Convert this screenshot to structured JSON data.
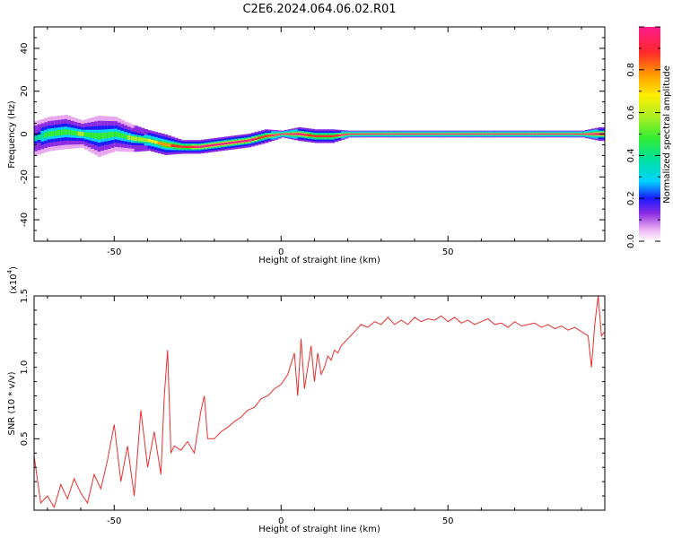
{
  "title": "C2E6.2024.064.06.02.R01",
  "chart_data": [
    {
      "type": "heatmap",
      "xlabel": "Height of straight line (km)",
      "ylabel": "Frequency (Hz)",
      "xlim": [
        -74,
        97
      ],
      "ylim": [
        -50,
        50
      ],
      "x_ticks": [
        "-50",
        "0",
        "50"
      ],
      "y_ticks": [
        "40",
        "20",
        "0",
        "-20",
        "-40"
      ],
      "ridge": {
        "x": [
          -74,
          -70,
          -65,
          -60,
          -55,
          -50,
          -45,
          -40,
          -35,
          -30,
          -25,
          -20,
          -15,
          -10,
          -5,
          0,
          5,
          10,
          15,
          20,
          25,
          30,
          40,
          50,
          60,
          70,
          80,
          90,
          95
        ],
        "freq": [
          -2,
          0,
          1,
          0,
          -1,
          0,
          -2,
          -3,
          -5,
          -6,
          -6,
          -5,
          -4,
          -3,
          -1,
          0,
          0,
          -1,
          -1,
          0,
          0,
          0,
          0,
          0,
          0,
          0,
          0,
          0,
          0
        ],
        "spread": [
          5,
          5,
          5,
          4,
          6,
          5,
          4,
          3,
          3,
          2,
          2,
          2,
          2,
          2,
          2,
          1,
          2,
          2,
          2,
          1,
          1,
          1,
          1,
          1,
          1,
          1,
          1,
          1,
          2
        ],
        "amplitude": [
          0.35,
          0.4,
          0.45,
          0.5,
          0.4,
          0.45,
          0.5,
          0.6,
          0.75,
          0.85,
          0.9,
          0.9,
          0.9,
          0.9,
          0.85,
          1.0,
          0.9,
          0.85,
          0.85,
          0.95,
          1.0,
          1.0,
          1.0,
          1.0,
          1.0,
          1.0,
          1.0,
          1.0,
          0.9
        ]
      },
      "colorbar": {
        "label": "Normalized spectral amplitude",
        "range": [
          0,
          1
        ],
        "ticks": [
          "0.0",
          "0.2",
          "0.4",
          "0.6",
          "0.8"
        ]
      }
    },
    {
      "type": "line",
      "xlabel": "Height of straight line (km)",
      "ylabel": "SNR (10 * v/v)",
      "scale_label": "(x10",
      "scale_exp": "4",
      "scale_close": ")",
      "xlim": [
        -74,
        97
      ],
      "ylim": [
        0,
        1.5
      ],
      "x_ticks": [
        "-50",
        "0",
        "50"
      ],
      "y_ticks": [
        "1.5",
        "1.0",
        "0.5"
      ],
      "color": "#e8302e",
      "series": {
        "x": [
          -74,
          -72,
          -70,
          -68,
          -66,
          -64,
          -62,
          -60,
          -58,
          -56,
          -54,
          -52,
          -50,
          -48,
          -46,
          -44,
          -42,
          -40,
          -38,
          -36,
          -35,
          -34,
          -33,
          -32,
          -30,
          -28,
          -26,
          -24,
          -23,
          -22,
          -20,
          -18,
          -16,
          -14,
          -12,
          -10,
          -8,
          -6,
          -4,
          -2,
          0,
          2,
          4,
          5,
          6,
          7,
          8,
          9,
          10,
          11,
          12,
          13,
          14,
          15,
          16,
          17,
          18,
          20,
          22,
          24,
          26,
          28,
          30,
          32,
          34,
          36,
          38,
          40,
          42,
          44,
          46,
          48,
          50,
          52,
          54,
          56,
          58,
          60,
          62,
          64,
          66,
          68,
          70,
          72,
          74,
          76,
          78,
          80,
          82,
          84,
          86,
          88,
          90,
          92,
          93,
          94,
          95,
          96,
          97
        ],
        "y": [
          0.38,
          0.05,
          0.1,
          0.02,
          0.18,
          0.08,
          0.22,
          0.12,
          0.05,
          0.25,
          0.15,
          0.35,
          0.6,
          0.2,
          0.45,
          0.1,
          0.7,
          0.3,
          0.55,
          0.25,
          0.8,
          1.12,
          0.4,
          0.45,
          0.42,
          0.48,
          0.4,
          0.7,
          0.8,
          0.5,
          0.5,
          0.55,
          0.58,
          0.62,
          0.65,
          0.7,
          0.72,
          0.78,
          0.8,
          0.85,
          0.88,
          0.95,
          1.1,
          0.8,
          1.2,
          0.85,
          1.0,
          1.15,
          0.9,
          1.1,
          0.95,
          1.0,
          1.08,
          1.05,
          1.12,
          1.1,
          1.15,
          1.2,
          1.25,
          1.3,
          1.28,
          1.32,
          1.3,
          1.35,
          1.3,
          1.33,
          1.3,
          1.35,
          1.32,
          1.34,
          1.33,
          1.36,
          1.32,
          1.35,
          1.31,
          1.33,
          1.3,
          1.32,
          1.34,
          1.3,
          1.31,
          1.28,
          1.32,
          1.29,
          1.3,
          1.31,
          1.28,
          1.3,
          1.27,
          1.29,
          1.26,
          1.28,
          1.25,
          1.22,
          1.0,
          1.3,
          1.5,
          1.22,
          1.25
        ]
      }
    }
  ]
}
